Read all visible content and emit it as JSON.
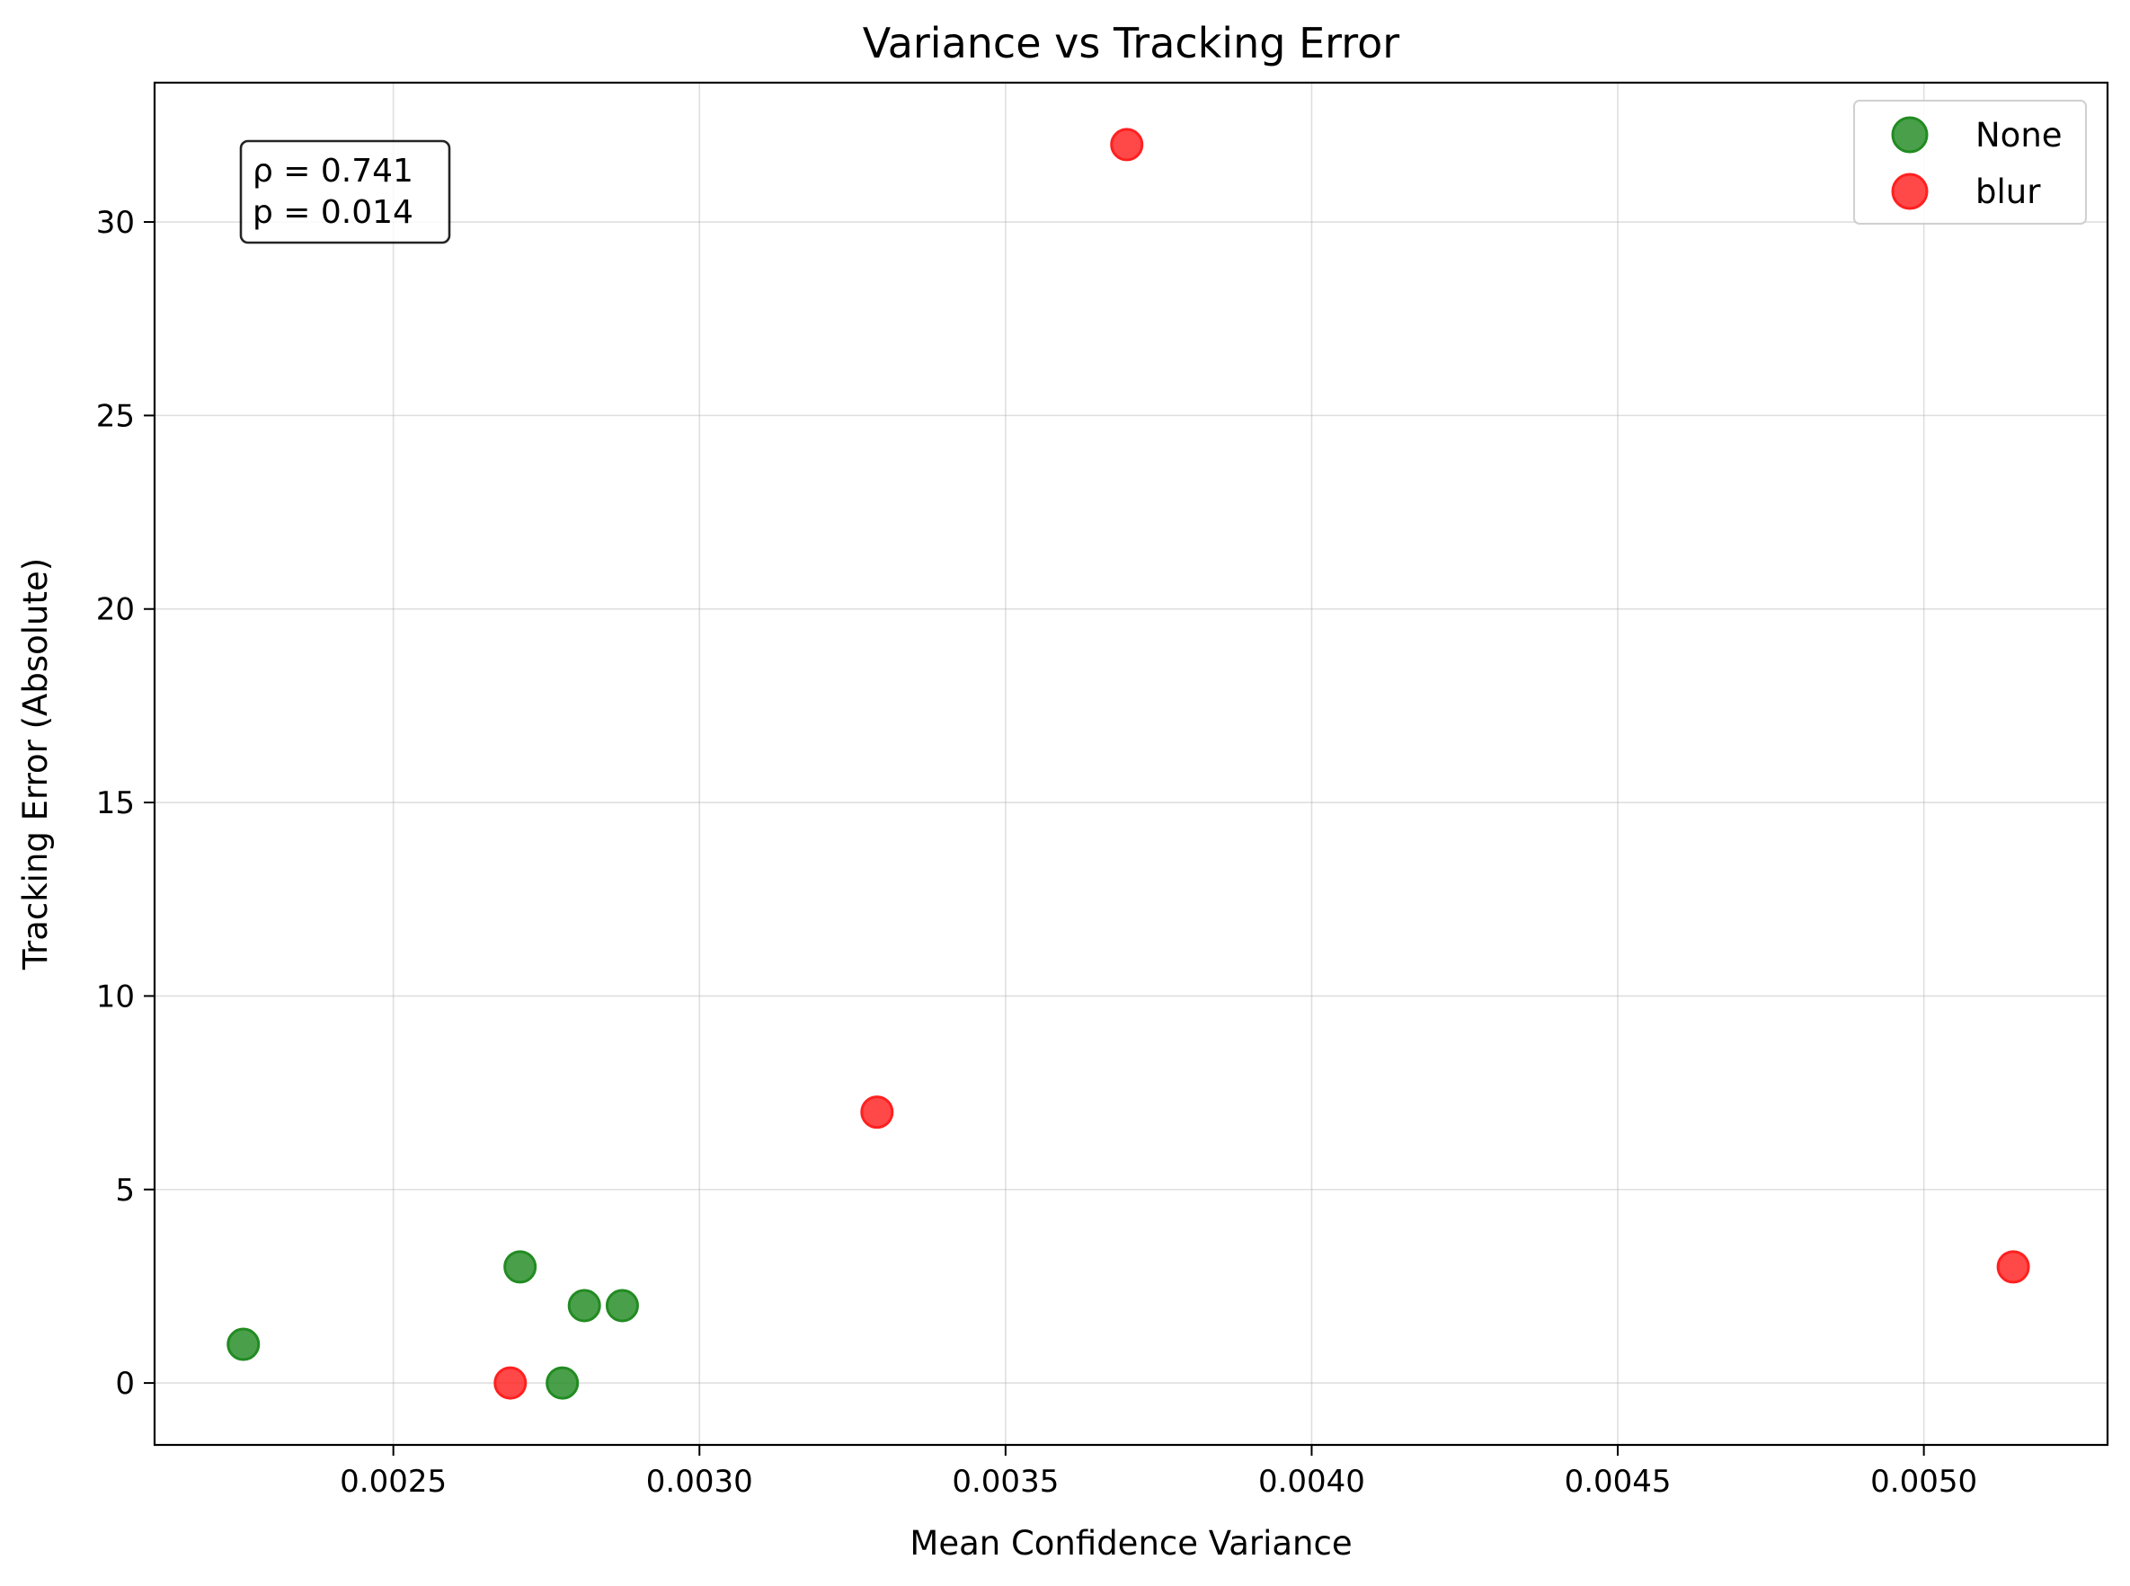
{
  "chart_data": {
    "type": "scatter",
    "title": "Variance vs Tracking Error",
    "xlabel": "Mean Confidence Variance",
    "ylabel": "Tracking Error (Absolute)",
    "xlim": [
      0.00211,
      0.0053
    ],
    "ylim": [
      -1.6,
      33.6
    ],
    "xticks": [
      0.0025,
      0.003,
      0.0035,
      0.004,
      0.0045,
      0.005
    ],
    "xtick_labels": [
      "0.0025",
      "0.0030",
      "0.0035",
      "0.0040",
      "0.0045",
      "0.0050"
    ],
    "yticks": [
      0,
      5,
      10,
      15,
      20,
      25,
      30
    ],
    "ytick_labels": [
      "0",
      "5",
      "10",
      "15",
      "20",
      "25",
      "30"
    ],
    "grid": true,
    "legend_position": "top-right",
    "series": [
      {
        "name": "None",
        "color": "#228B22",
        "points": [
          {
            "x": 0.002255,
            "y": 1
          },
          {
            "x": 0.002707,
            "y": 3
          },
          {
            "x": 0.002776,
            "y": 0
          },
          {
            "x": 0.002812,
            "y": 2
          },
          {
            "x": 0.002874,
            "y": 2
          }
        ]
      },
      {
        "name": "blur",
        "color": "#FF2020",
        "points": [
          {
            "x": 0.002691,
            "y": 0
          },
          {
            "x": 0.00329,
            "y": 7
          },
          {
            "x": 0.003698,
            "y": 32
          },
          {
            "x": 0.005146,
            "y": 3
          }
        ]
      }
    ],
    "annotation": {
      "position": "top-left",
      "lines": [
        "ρ = 0.741",
        "p = 0.014"
      ]
    }
  }
}
